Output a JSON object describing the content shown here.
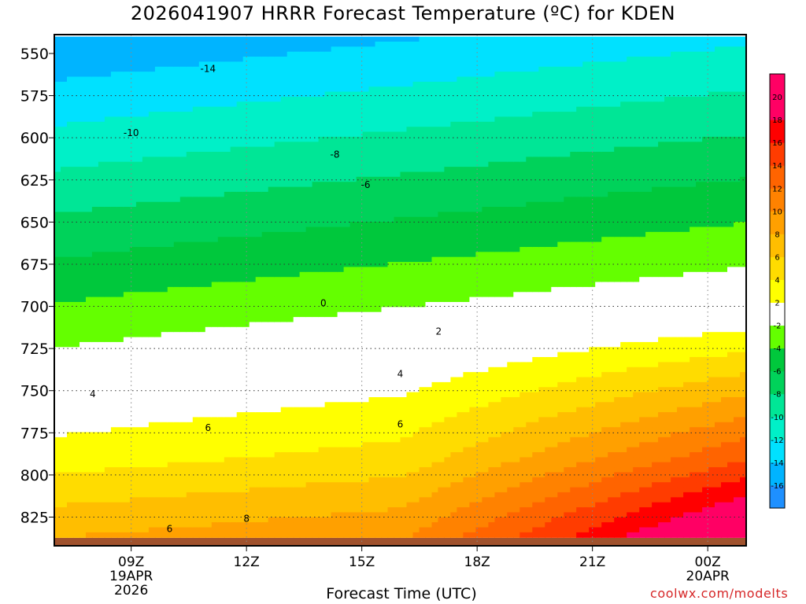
{
  "chart_data": {
    "type": "heatmap",
    "title": "2026041907 HRRR Forecast Temperature (ºC) for KDEN",
    "xlabel": "Forecast Time (UTC)",
    "ylabel": "",
    "x_ticks": [
      {
        "label": "09Z",
        "sub1": "19APR",
        "sub2": "2026",
        "hour": 9
      },
      {
        "label": "12Z",
        "hour": 12
      },
      {
        "label": "15Z",
        "hour": 15
      },
      {
        "label": "18Z",
        "hour": 18
      },
      {
        "label": "21Z",
        "hour": 21
      },
      {
        "label": "00Z",
        "sub1": "20APR",
        "hour": 24
      }
    ],
    "xlim_hours": [
      7,
      25
    ],
    "y_ticks": [
      550,
      575,
      600,
      625,
      650,
      675,
      700,
      725,
      750,
      775,
      800,
      825
    ],
    "ylim_hPa": [
      540,
      837
    ],
    "grid": "dotted",
    "colorbar_levels": [
      -16,
      -14,
      -12,
      -10,
      -8,
      -6,
      -4,
      -2,
      2,
      4,
      6,
      8,
      10,
      12,
      14,
      16,
      18,
      20
    ],
    "colorbar_colors": [
      "#1e90ff",
      "#00b4ff",
      "#00e1ff",
      "#00f0c8",
      "#00e696",
      "#00d25a",
      "#00c83c",
      "#64ff00",
      "#ffffff",
      "#ffff00",
      "#ffdc00",
      "#ffbe00",
      "#ffa000",
      "#ff8200",
      "#ff6400",
      "#ff3c00",
      "#ff0000",
      "#ff0064"
    ],
    "contour_labels": [
      {
        "text": "-14",
        "hour": 11,
        "p": 559
      },
      {
        "text": "-10",
        "hour": 9,
        "p": 597
      },
      {
        "text": "-8",
        "hour": 14.3,
        "p": 610
      },
      {
        "text": "-6",
        "hour": 15.1,
        "p": 628
      },
      {
        "text": "0",
        "hour": 14,
        "p": 698
      },
      {
        "text": "2",
        "hour": 17,
        "p": 715
      },
      {
        "text": "4",
        "hour": 16,
        "p": 740
      },
      {
        "text": "4",
        "hour": 8,
        "p": 752
      },
      {
        "text": "6",
        "hour": 11,
        "p": 772
      },
      {
        "text": "6",
        "hour": 16,
        "p": 770
      },
      {
        "text": "8",
        "hour": 12,
        "p": 826
      },
      {
        "text": "6",
        "hour": 10,
        "p": 832
      }
    ]
  },
  "credit": "coolwx.com/modelts"
}
